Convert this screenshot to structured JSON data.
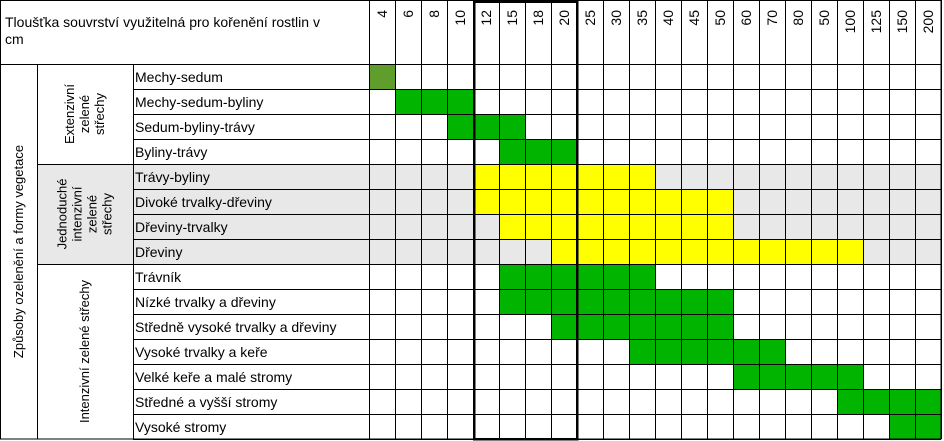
{
  "header_title": "Tloušťka souvrství využitelná pro kořenění rostlin v cm",
  "columns": [
    "4",
    "6",
    "8",
    "10",
    "12",
    "15",
    "18",
    "20",
    "25",
    "30",
    "35",
    "40",
    "45",
    "50",
    "60",
    "70",
    "80",
    "50",
    "100",
    "125",
    "150",
    "200"
  ],
  "main_label": "Způsoby ozelenění a formy vegetace",
  "groups": [
    {
      "label_lines": [
        "Extenzivní",
        "zelené",
        "střechy"
      ],
      "row_start": 0,
      "row_count": 4
    },
    {
      "label_lines": [
        "Jednoduché",
        "intenzivní",
        "zelené",
        "střechy"
      ],
      "row_start": 4,
      "row_count": 4
    },
    {
      "label_lines": [
        "Intenzivní zelené střechy"
      ],
      "row_start": 8,
      "row_count": 7
    }
  ],
  "rows": [
    {
      "label": "Mechy-sedum",
      "fill": [
        0,
        0,
        0
      ],
      "color": "#5f9e2a",
      "shaded": false
    },
    {
      "label": "Mechy-sedum-byliny",
      "fill": [
        1,
        2,
        3
      ],
      "color": "#00b400",
      "shaded": false
    },
    {
      "label": "Sedum-byliny-trávy",
      "fill": [
        3,
        4,
        5
      ],
      "color": "#00b400",
      "shaded": false
    },
    {
      "label": "Byliny-trávy",
      "fill": [
        5,
        6,
        7
      ],
      "color": "#00b400",
      "shaded": false
    },
    {
      "label": "Trávy-byliny",
      "fill": [
        4,
        5,
        6,
        7,
        8,
        9,
        10
      ],
      "color": "#ffff00",
      "shaded": true
    },
    {
      "label": "Divoké trvalky-dřeviny",
      "fill": [
        4,
        5,
        6,
        7,
        8,
        9,
        10,
        11,
        12,
        13
      ],
      "color": "#ffff00",
      "shaded": true
    },
    {
      "label": "Dřeviny-trvalky",
      "fill": [
        5,
        6,
        7,
        8,
        9,
        10,
        11,
        12,
        13
      ],
      "color": "#ffff00",
      "shaded": true
    },
    {
      "label": "Dřeviny",
      "fill": [
        7,
        8,
        9,
        10,
        11,
        12,
        13,
        14,
        15,
        16,
        17,
        18
      ],
      "color": "#ffff00",
      "shaded": true
    },
    {
      "label": "Trávník",
      "fill": [
        5,
        6,
        7,
        8,
        9,
        10
      ],
      "color": "#00b400",
      "shaded": false
    },
    {
      "label": "Nízké trvalky a dřeviny",
      "fill": [
        5,
        6,
        7,
        8,
        9,
        10,
        11,
        12,
        13
      ],
      "color": "#00b400",
      "shaded": false
    },
    {
      "label": "Středně vysoké trvalky a dřeviny",
      "fill": [
        7,
        8,
        9,
        10,
        11,
        12,
        13
      ],
      "color": "#00b400",
      "shaded": false
    },
    {
      "label": "Vysoké trvalky a keře",
      "fill": [
        10,
        11,
        12,
        13,
        14,
        15
      ],
      "color": "#00b400",
      "shaded": false
    },
    {
      "label": "Velké keře a malé stromy",
      "fill": [
        14,
        15,
        16,
        17,
        18
      ],
      "color": "#00b400",
      "shaded": false
    },
    {
      "label": "Středné a vyšší stromy",
      "fill": [
        18,
        19,
        20,
        21
      ],
      "color": "#00b400",
      "shaded": false
    },
    {
      "label": "Vysoké stromy",
      "fill": [
        20,
        21
      ],
      "color": "#00b400",
      "shaded": false
    }
  ],
  "highlight": {
    "col_start": 4,
    "col_end": 7
  },
  "colors": {
    "grid": "#000000",
    "shaded_bg": "#e8e8e8",
    "light_green": "#5f9e2a",
    "green": "#00b400",
    "yellow": "#ffff00"
  }
}
